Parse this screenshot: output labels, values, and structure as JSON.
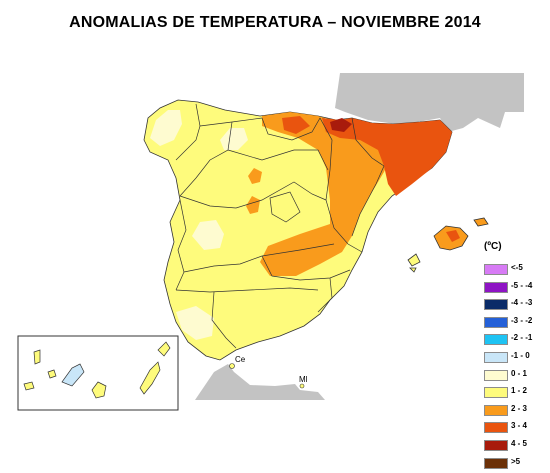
{
  "title": "ANOMALIAS DE TEMPERATURA – NOVIEMBRE 2014",
  "legend": {
    "unit_label": "(ºC)",
    "classes": [
      {
        "label": "<-5",
        "color": "#d77bf5"
      },
      {
        "label": "-5 - -4",
        "color": "#8e14c4"
      },
      {
        "label": "-4 - -3",
        "color": "#0a2b68"
      },
      {
        "label": "-3 - -2",
        "color": "#2460d8"
      },
      {
        "label": "-2 - -1",
        "color": "#1ec3f3"
      },
      {
        "label": "-1 - 0",
        "color": "#c9e6f8"
      },
      {
        "label": "0 - 1",
        "color": "#fefbd0"
      },
      {
        "label": "1 - 2",
        "color": "#fefb7c"
      },
      {
        "label": "2 - 3",
        "color": "#f99b1c"
      },
      {
        "label": "3 - 4",
        "color": "#e9540f"
      },
      {
        "label": "4 - 5",
        "color": "#a81b0c"
      },
      {
        "label": ">5",
        "color": "#6b3007"
      }
    ]
  },
  "places": {
    "ceuta": "Ce",
    "melilla": "Ml"
  },
  "map_colors": {
    "neighbors": "#c3c3c3",
    "region_border": "#333333"
  }
}
